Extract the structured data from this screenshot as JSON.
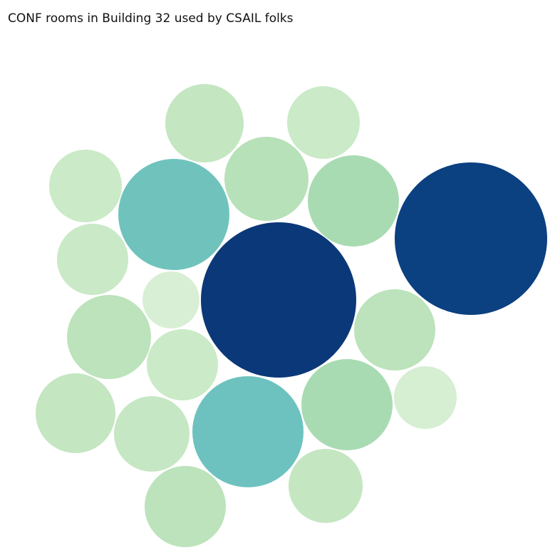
{
  "chart_data": {
    "type": "bubble",
    "title": "CONF rooms in Building 32 used by CSAIL folks",
    "legend": "none",
    "axes": "none",
    "bubbles": [
      {
        "value": 55,
        "color": "#c4e6c1"
      },
      {
        "value": 51,
        "color": "#cbeac8"
      },
      {
        "value": 51,
        "color": "#cbeac8"
      },
      {
        "value": 59,
        "color": "#b7e1b9"
      },
      {
        "value": 78,
        "color": "#70c3bd"
      },
      {
        "value": 64,
        "color": "#a9dbb3"
      },
      {
        "value": 107,
        "color": "#0b4081"
      },
      {
        "value": 50,
        "color": "#c9e9c7"
      },
      {
        "value": 109,
        "color": "#0b3878"
      },
      {
        "value": 40,
        "color": "#d9efd5"
      },
      {
        "value": 59,
        "color": "#bce3bb"
      },
      {
        "value": 57,
        "color": "#bce3bb"
      },
      {
        "value": 50,
        "color": "#cbeac8"
      },
      {
        "value": 56,
        "color": "#c4e6c1"
      },
      {
        "value": 53,
        "color": "#c6e7c3"
      },
      {
        "value": 78,
        "color": "#6dc2bf"
      },
      {
        "value": 64,
        "color": "#a9dbb3"
      },
      {
        "value": 44,
        "color": "#d6eed2"
      },
      {
        "value": 52,
        "color": "#c4e6c1"
      },
      {
        "value": 57,
        "color": "#bce3bb"
      }
    ]
  }
}
